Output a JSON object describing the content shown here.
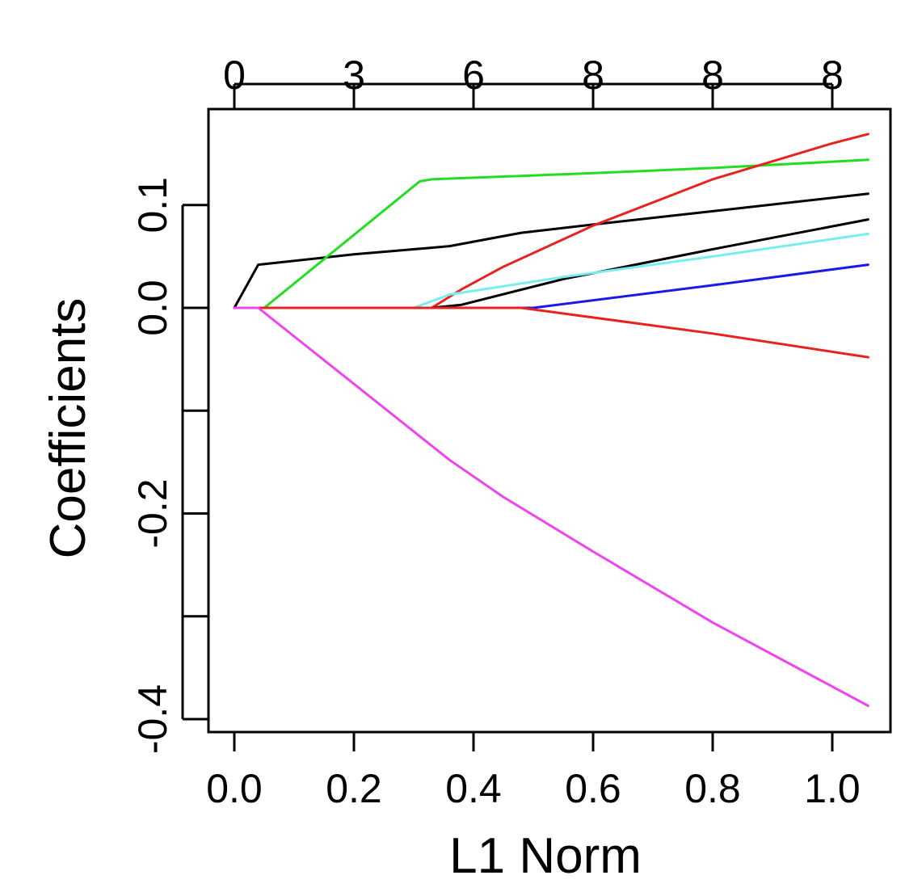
{
  "chart_data": {
    "type": "line",
    "xlabel": "L1 Norm",
    "ylabel": "Coefficients",
    "xlim": [
      -0.04,
      1.1
    ],
    "ylim": [
      -0.41,
      0.19
    ],
    "x_ticks": [
      "0.0",
      "0.2",
      "0.4",
      "0.6",
      "0.8",
      "1.0"
    ],
    "x_tick_values": [
      0.0,
      0.2,
      0.4,
      0.6,
      0.8,
      1.0
    ],
    "y_ticks": [
      "0.1",
      "0.0",
      "-0.2",
      "-0.4"
    ],
    "y_tick_values": [
      0.1,
      0.0,
      -0.2,
      -0.4
    ],
    "y_minor_tick_values": [
      -0.1,
      -0.3
    ],
    "top_ticks": [
      "0",
      "3",
      "6",
      "8",
      "8",
      "8"
    ],
    "top_tick_values": [
      0.0,
      0.2,
      0.4,
      0.6,
      0.8,
      1.0
    ],
    "grid": false,
    "series": [
      {
        "color": "#000000",
        "points": [
          [
            0.0,
            0.0
          ],
          [
            0.04,
            0.042
          ],
          [
            0.2,
            0.052
          ],
          [
            0.32,
            0.058
          ],
          [
            0.36,
            0.06
          ],
          [
            0.48,
            0.073
          ],
          [
            0.6,
            0.081
          ],
          [
            0.8,
            0.094
          ],
          [
            1.06,
            0.111
          ]
        ]
      },
      {
        "color": "#22dd22",
        "points": [
          [
            0.0,
            0.0
          ],
          [
            0.05,
            0.0
          ],
          [
            0.31,
            0.123
          ],
          [
            0.33,
            0.125
          ],
          [
            0.6,
            0.131
          ],
          [
            0.8,
            0.136
          ],
          [
            1.06,
            0.144
          ]
        ]
      },
      {
        "color": "#e8231e",
        "points": [
          [
            0.0,
            0.0
          ],
          [
            0.33,
            0.0
          ],
          [
            0.38,
            0.018
          ],
          [
            0.45,
            0.04
          ],
          [
            0.6,
            0.08
          ],
          [
            0.8,
            0.125
          ],
          [
            1.0,
            0.16
          ],
          [
            1.06,
            0.169
          ]
        ]
      },
      {
        "color": "#000000",
        "points": [
          [
            0.0,
            0.0
          ],
          [
            0.33,
            0.0
          ],
          [
            0.38,
            0.003
          ],
          [
            0.55,
            0.028
          ],
          [
            0.8,
            0.057
          ],
          [
            1.06,
            0.086
          ]
        ]
      },
      {
        "color": "#77eeee",
        "points": [
          [
            0.0,
            0.0
          ],
          [
            0.3,
            0.0
          ],
          [
            0.36,
            0.013
          ],
          [
            0.55,
            0.03
          ],
          [
            0.8,
            0.05
          ],
          [
            1.06,
            0.072
          ]
        ]
      },
      {
        "color": "#1a1ae6",
        "points": [
          [
            0.0,
            0.0
          ],
          [
            0.5,
            0.0
          ],
          [
            0.8,
            0.022
          ],
          [
            1.06,
            0.042
          ]
        ]
      },
      {
        "color": "#e8231e",
        "points": [
          [
            0.0,
            0.0
          ],
          [
            0.48,
            0.0
          ],
          [
            0.8,
            -0.025
          ],
          [
            1.06,
            -0.048
          ]
        ]
      },
      {
        "color": "#ee44ee",
        "points": [
          [
            0.0,
            0.0
          ],
          [
            0.04,
            0.0
          ],
          [
            0.36,
            -0.148
          ],
          [
            0.45,
            -0.184
          ],
          [
            0.6,
            -0.237
          ],
          [
            0.8,
            -0.306
          ],
          [
            1.06,
            -0.387
          ]
        ]
      }
    ]
  }
}
